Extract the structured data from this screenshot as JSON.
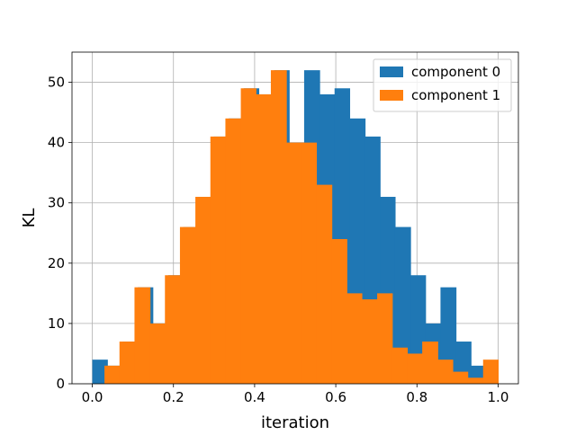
{
  "chart_data": {
    "type": "histogram",
    "title": "",
    "xlabel": "iteration",
    "ylabel": "KL",
    "xlim": [
      -0.05,
      1.05
    ],
    "ylim": [
      0,
      55
    ],
    "x_ticks": [
      0.0,
      0.2,
      0.4,
      0.6,
      0.8,
      1.0
    ],
    "x_tick_labels": [
      "0.0",
      "0.2",
      "0.4",
      "0.6",
      "0.8",
      "1.0"
    ],
    "y_ticks": [
      0,
      10,
      20,
      30,
      40,
      50
    ],
    "y_tick_labels": [
      "0",
      "10",
      "20",
      "30",
      "40",
      "50"
    ],
    "grid": true,
    "legend": "top-right",
    "series": [
      {
        "name": "component 0",
        "color": "#1f77b4",
        "bins": [
          [
            0.0,
            0.037,
            4
          ],
          [
            0.037,
            0.075,
            3
          ],
          [
            0.075,
            0.112,
            7
          ],
          [
            0.112,
            0.149,
            16
          ],
          [
            0.149,
            0.187,
            10
          ],
          [
            0.187,
            0.224,
            18
          ],
          [
            0.224,
            0.261,
            26
          ],
          [
            0.261,
            0.299,
            31
          ],
          [
            0.299,
            0.336,
            41
          ],
          [
            0.336,
            0.373,
            44
          ],
          [
            0.373,
            0.41,
            49
          ],
          [
            0.41,
            0.448,
            48
          ],
          [
            0.448,
            0.485,
            52
          ],
          [
            0.485,
            0.522,
            40
          ],
          [
            0.522,
            0.56,
            52
          ],
          [
            0.56,
            0.597,
            48
          ],
          [
            0.597,
            0.634,
            49
          ],
          [
            0.634,
            0.672,
            44
          ],
          [
            0.672,
            0.709,
            41
          ],
          [
            0.709,
            0.746,
            31
          ],
          [
            0.746,
            0.784,
            26
          ],
          [
            0.784,
            0.821,
            18
          ],
          [
            0.821,
            0.858,
            10
          ],
          [
            0.858,
            0.896,
            16
          ],
          [
            0.896,
            0.933,
            7
          ],
          [
            0.933,
            0.97,
            3
          ]
        ]
      },
      {
        "name": "component 1",
        "color": "#ff7f0e",
        "bins": [
          [
            0.03,
            0.067,
            3
          ],
          [
            0.067,
            0.104,
            7
          ],
          [
            0.104,
            0.142,
            16
          ],
          [
            0.142,
            0.179,
            10
          ],
          [
            0.179,
            0.216,
            18
          ],
          [
            0.216,
            0.254,
            26
          ],
          [
            0.254,
            0.291,
            31
          ],
          [
            0.291,
            0.328,
            41
          ],
          [
            0.328,
            0.366,
            44
          ],
          [
            0.366,
            0.403,
            49
          ],
          [
            0.403,
            0.44,
            48
          ],
          [
            0.44,
            0.478,
            52
          ],
          [
            0.478,
            0.515,
            40
          ],
          [
            0.515,
            0.552,
            40
          ],
          [
            0.552,
            0.59,
            33
          ],
          [
            0.59,
            0.627,
            24
          ],
          [
            0.627,
            0.664,
            15
          ],
          [
            0.664,
            0.702,
            14
          ],
          [
            0.702,
            0.739,
            15
          ],
          [
            0.739,
            0.776,
            6
          ],
          [
            0.776,
            0.813,
            5
          ],
          [
            0.813,
            0.851,
            7
          ],
          [
            0.851,
            0.888,
            4
          ],
          [
            0.888,
            0.925,
            2
          ],
          [
            0.925,
            0.963,
            1
          ],
          [
            0.963,
            1.0,
            4
          ]
        ]
      }
    ]
  }
}
